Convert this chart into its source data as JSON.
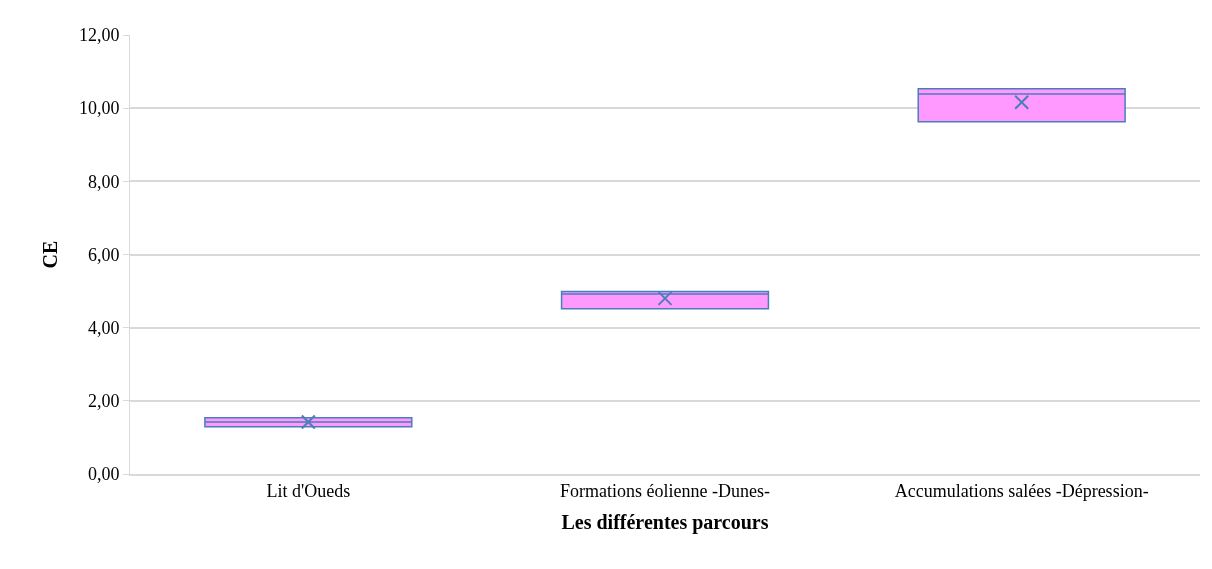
{
  "chart_data": {
    "type": "box",
    "xlabel": "Les différentes parcours",
    "ylabel": "CE",
    "categories": [
      "Lit d'Oueds",
      "Formations éolienne -Dunes-",
      "Accumulations salées -Dépression-"
    ],
    "boxes": [
      {
        "low": 1.29,
        "q1": 1.29,
        "median": 1.42,
        "q3": 1.54,
        "high": 1.54,
        "mean": 1.42
      },
      {
        "low": 4.52,
        "q1": 4.52,
        "median": 4.92,
        "q3": 4.99,
        "high": 4.99,
        "mean": 4.8
      },
      {
        "low": 9.63,
        "q1": 9.63,
        "median": 10.39,
        "q3": 10.53,
        "high": 10.53,
        "mean": 10.16
      }
    ],
    "color": "#ff99ff",
    "marker": "cross",
    "ylim": [
      0,
      12
    ],
    "yticks": [
      {
        "value": 0,
        "label": "0,00"
      },
      {
        "value": 2,
        "label": "2,00"
      },
      {
        "value": 4,
        "label": "4,00"
      },
      {
        "value": 6,
        "label": "6,00"
      },
      {
        "value": 8,
        "label": "8,00"
      },
      {
        "value": 10,
        "label": "10,00"
      },
      {
        "value": 12,
        "label": "12,00"
      }
    ],
    "grid": "y"
  }
}
